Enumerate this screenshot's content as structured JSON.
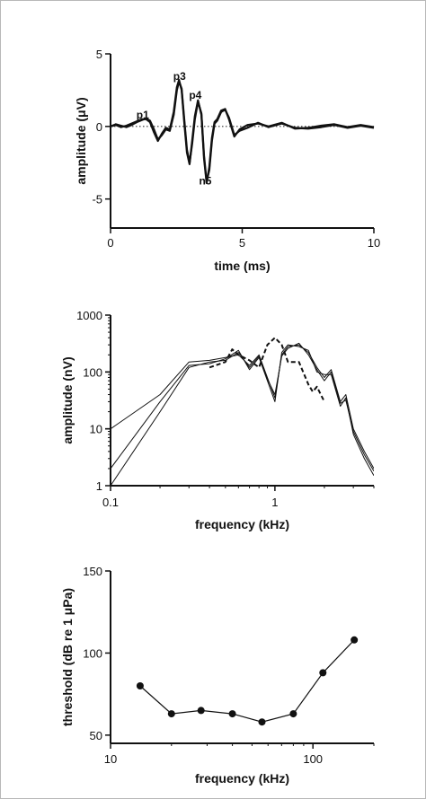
{
  "chart_data": [
    {
      "type": "line",
      "xlabel": "time (ms)",
      "ylabel": "amplitude (μV)",
      "xlim": [
        0,
        10
      ],
      "ylim": [
        -7,
        5
      ],
      "xticks": [
        0,
        5,
        10
      ],
      "yticks": [
        5,
        0,
        -5
      ],
      "zero_line": "dotted",
      "peak_labels": [
        {
          "text": "p1",
          "x": 1.22,
          "y": 0.55
        },
        {
          "text": "p3",
          "x": 2.62,
          "y": 3.2
        },
        {
          "text": "p4",
          "x": 3.22,
          "y": 1.9
        },
        {
          "text": "n5",
          "x": 3.6,
          "y": -4.0
        }
      ],
      "series": [
        {
          "values": [
            [
              0,
              0
            ],
            [
              0.2,
              0.15
            ],
            [
              0.4,
              0.05
            ],
            [
              0.6,
              -0.05
            ],
            [
              0.8,
              0.1
            ],
            [
              1.0,
              0.3
            ],
            [
              1.2,
              0.45
            ],
            [
              1.35,
              0.55
            ],
            [
              1.5,
              0.4
            ],
            [
              1.65,
              -0.2
            ],
            [
              1.8,
              -0.9
            ],
            [
              1.95,
              -0.6
            ],
            [
              2.1,
              -0.2
            ],
            [
              2.25,
              -0.3
            ],
            [
              2.4,
              0.8
            ],
            [
              2.52,
              2.5
            ],
            [
              2.6,
              3.1
            ],
            [
              2.7,
              2.6
            ],
            [
              2.8,
              0.5
            ],
            [
              2.9,
              -1.6
            ],
            [
              3.0,
              -2.5
            ],
            [
              3.1,
              -1.2
            ],
            [
              3.2,
              0.5
            ],
            [
              3.32,
              1.7
            ],
            [
              3.45,
              0.9
            ],
            [
              3.55,
              -2.0
            ],
            [
              3.65,
              -3.8
            ],
            [
              3.75,
              -3.0
            ],
            [
              3.85,
              -1.0
            ],
            [
              3.95,
              0.2
            ],
            [
              4.05,
              0.4
            ],
            [
              4.2,
              1.0
            ],
            [
              4.35,
              1.15
            ],
            [
              4.5,
              0.6
            ],
            [
              4.7,
              -0.6
            ],
            [
              4.9,
              -0.3
            ],
            [
              5.2,
              -0.1
            ],
            [
              5.6,
              0.25
            ],
            [
              6.0,
              -0.05
            ],
            [
              6.5,
              0.2
            ],
            [
              7.0,
              -0.1
            ],
            [
              7.5,
              -0.15
            ],
            [
              8.0,
              -0.05
            ],
            [
              8.5,
              0.1
            ],
            [
              9.0,
              -0.1
            ],
            [
              9.5,
              0.05
            ],
            [
              10,
              -0.1
            ]
          ]
        },
        {
          "values": [
            [
              0,
              0
            ],
            [
              0.2,
              0.1
            ],
            [
              0.4,
              -0.05
            ],
            [
              0.6,
              0.05
            ],
            [
              0.8,
              0.2
            ],
            [
              1.0,
              0.35
            ],
            [
              1.2,
              0.5
            ],
            [
              1.35,
              0.5
            ],
            [
              1.5,
              0.3
            ],
            [
              1.65,
              -0.4
            ],
            [
              1.8,
              -1.0
            ],
            [
              1.95,
              -0.5
            ],
            [
              2.1,
              -0.1
            ],
            [
              2.25,
              -0.2
            ],
            [
              2.4,
              1.0
            ],
            [
              2.52,
              2.7
            ],
            [
              2.6,
              3.2
            ],
            [
              2.7,
              2.5
            ],
            [
              2.8,
              0.3
            ],
            [
              2.9,
              -1.8
            ],
            [
              3.0,
              -2.6
            ],
            [
              3.1,
              -1.0
            ],
            [
              3.2,
              0.7
            ],
            [
              3.32,
              1.8
            ],
            [
              3.45,
              0.8
            ],
            [
              3.55,
              -2.2
            ],
            [
              3.65,
              -3.9
            ],
            [
              3.75,
              -2.8
            ],
            [
              3.85,
              -0.8
            ],
            [
              3.95,
              0.3
            ],
            [
              4.05,
              0.5
            ],
            [
              4.2,
              1.1
            ],
            [
              4.35,
              1.2
            ],
            [
              4.5,
              0.5
            ],
            [
              4.7,
              -0.7
            ],
            [
              4.9,
              -0.2
            ],
            [
              5.2,
              0.1
            ],
            [
              5.6,
              0.2
            ],
            [
              6.0,
              0.0
            ],
            [
              6.5,
              0.25
            ],
            [
              7.0,
              -0.15
            ],
            [
              7.5,
              -0.1
            ],
            [
              8.0,
              0.05
            ],
            [
              8.5,
              0.15
            ],
            [
              9.0,
              -0.05
            ],
            [
              9.5,
              0.1
            ],
            [
              10,
              -0.05
            ]
          ]
        }
      ]
    },
    {
      "type": "line",
      "xlabel": "frequency (kHz)",
      "ylabel": "amplitude (nV)",
      "x_scale": "log",
      "y_scale": "log",
      "xlim": [
        0.1,
        4
      ],
      "ylim": [
        1,
        1000
      ],
      "xtick_labels": [
        {
          "v": 0.1,
          "text": "0.1"
        },
        {
          "v": 1,
          "text": "1"
        }
      ],
      "ytick_labels": [
        {
          "v": 1000,
          "text": "1000"
        },
        {
          "v": 100,
          "text": "100"
        },
        {
          "v": 10,
          "text": "10"
        },
        {
          "v": 1,
          "text": "1"
        }
      ],
      "series": [
        {
          "style": "solid",
          "values": [
            [
              0.1,
              10
            ],
            [
              0.2,
              40
            ],
            [
              0.3,
              150
            ],
            [
              0.4,
              160
            ],
            [
              0.5,
              180
            ],
            [
              0.6,
              200
            ],
            [
              0.7,
              130
            ],
            [
              0.8,
              200
            ],
            [
              0.9,
              80
            ],
            [
              1.0,
              35
            ],
            [
              1.1,
              200
            ],
            [
              1.2,
              280
            ],
            [
              1.4,
              300
            ],
            [
              1.6,
              220
            ],
            [
              1.8,
              120
            ],
            [
              2.0,
              80
            ],
            [
              2.2,
              110
            ],
            [
              2.5,
              30
            ],
            [
              2.7,
              40
            ],
            [
              3.0,
              10
            ],
            [
              3.5,
              4
            ],
            [
              4.0,
              2
            ]
          ]
        },
        {
          "style": "solid",
          "values": [
            [
              0.1,
              2
            ],
            [
              0.2,
              30
            ],
            [
              0.3,
              130
            ],
            [
              0.4,
              140
            ],
            [
              0.5,
              170
            ],
            [
              0.6,
              240
            ],
            [
              0.7,
              110
            ],
            [
              0.8,
              180
            ],
            [
              0.9,
              70
            ],
            [
              1.0,
              30
            ],
            [
              1.1,
              220
            ],
            [
              1.2,
              300
            ],
            [
              1.4,
              280
            ],
            [
              1.6,
              240
            ],
            [
              1.8,
              100
            ],
            [
              2.0,
              90
            ],
            [
              2.2,
              90
            ],
            [
              2.5,
              25
            ],
            [
              2.7,
              35
            ],
            [
              3.0,
              8
            ],
            [
              3.5,
              3
            ],
            [
              4.0,
              1.5
            ]
          ]
        },
        {
          "style": "solid",
          "values": [
            [
              0.1,
              1
            ],
            [
              0.2,
              20
            ],
            [
              0.3,
              120
            ],
            [
              0.4,
              150
            ],
            [
              0.5,
              160
            ],
            [
              0.6,
              220
            ],
            [
              0.7,
              120
            ],
            [
              0.8,
              190
            ],
            [
              0.9,
              75
            ],
            [
              1.0,
              40
            ],
            [
              1.1,
              190
            ],
            [
              1.2,
              260
            ],
            [
              1.4,
              320
            ],
            [
              1.6,
              200
            ],
            [
              1.8,
              110
            ],
            [
              2.0,
              70
            ],
            [
              2.2,
              100
            ],
            [
              2.5,
              28
            ],
            [
              2.7,
              32
            ],
            [
              3.0,
              9
            ],
            [
              3.5,
              3.5
            ],
            [
              4.0,
              1.8
            ]
          ]
        },
        {
          "style": "dashed",
          "values": [
            [
              0.4,
              120
            ],
            [
              0.5,
              150
            ],
            [
              0.55,
              250
            ],
            [
              0.6,
              200
            ],
            [
              0.7,
              160
            ],
            [
              0.8,
              120
            ],
            [
              0.9,
              300
            ],
            [
              1.0,
              400
            ],
            [
              1.1,
              300
            ],
            [
              1.2,
              150
            ],
            [
              1.4,
              150
            ],
            [
              1.6,
              60
            ],
            [
              1.7,
              45
            ],
            [
              1.8,
              55
            ],
            [
              2.0,
              30
            ]
          ]
        }
      ]
    },
    {
      "type": "line",
      "xlabel": "frequency (kHz)",
      "ylabel": "threshold (dB re 1 μPa)",
      "x_scale": "log",
      "xlim": [
        10,
        200
      ],
      "ylim": [
        45,
        150
      ],
      "xtick_labels": [
        {
          "v": 10,
          "text": "10"
        },
        {
          "v": 100,
          "text": "100"
        }
      ],
      "yticks": [
        150,
        100,
        50
      ],
      "markers": "filled-circle",
      "series": [
        {
          "values": [
            [
              14,
              80
            ],
            [
              20,
              63
            ],
            [
              28,
              65
            ],
            [
              40,
              63
            ],
            [
              56,
              58
            ],
            [
              80,
              63
            ],
            [
              112,
              88
            ],
            [
              160,
              108
            ]
          ]
        }
      ]
    }
  ]
}
